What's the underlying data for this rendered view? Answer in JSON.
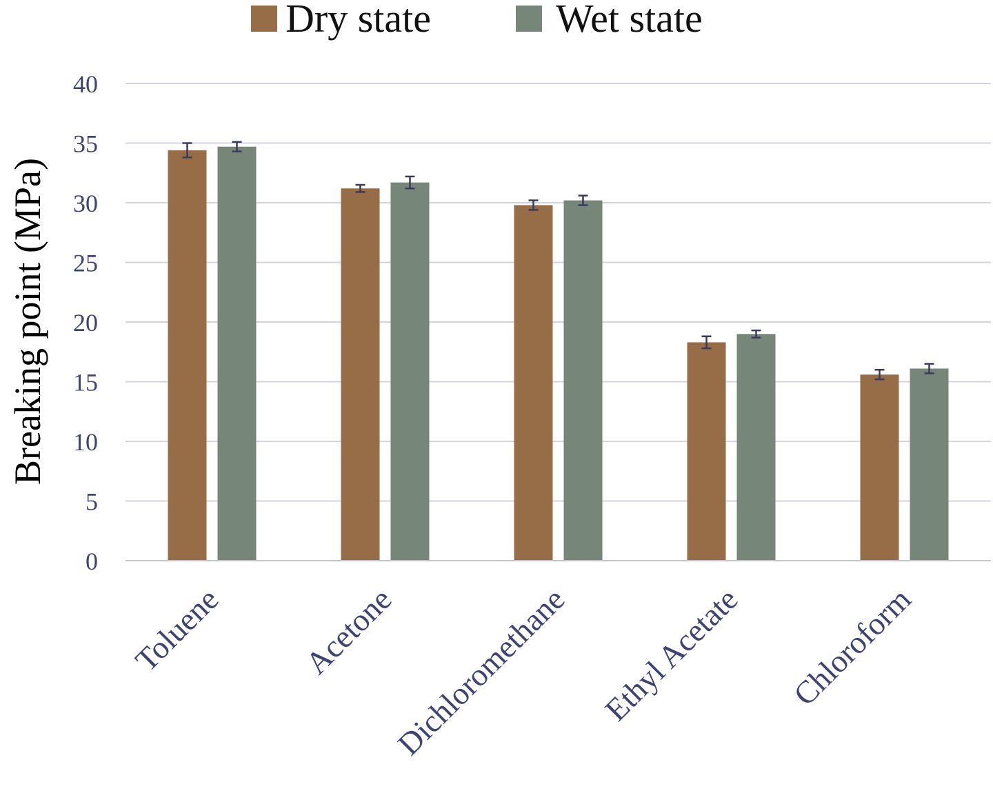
{
  "chart_data": {
    "type": "bar",
    "title": "",
    "xlabel": "",
    "ylabel": "Breaking point (MPa)",
    "ylim": [
      0,
      40
    ],
    "yticks": [
      0,
      5,
      10,
      15,
      20,
      25,
      30,
      35,
      40
    ],
    "grid": "horizontal",
    "legend_position": "top-center",
    "categories": [
      "Toluene",
      "Acetone",
      "Dichloromethane",
      "Ethyl Acetate",
      "Chloroform"
    ],
    "series": [
      {
        "name": "Dry state",
        "color": "#966d46",
        "values": [
          34.4,
          31.2,
          29.8,
          18.3,
          15.6
        ],
        "errors": [
          0.6,
          0.3,
          0.4,
          0.5,
          0.4
        ]
      },
      {
        "name": "Wet state",
        "color": "#76877a",
        "values": [
          34.7,
          31.7,
          30.2,
          19.0,
          16.1
        ],
        "errors": [
          0.4,
          0.5,
          0.4,
          0.3,
          0.4
        ]
      }
    ]
  }
}
